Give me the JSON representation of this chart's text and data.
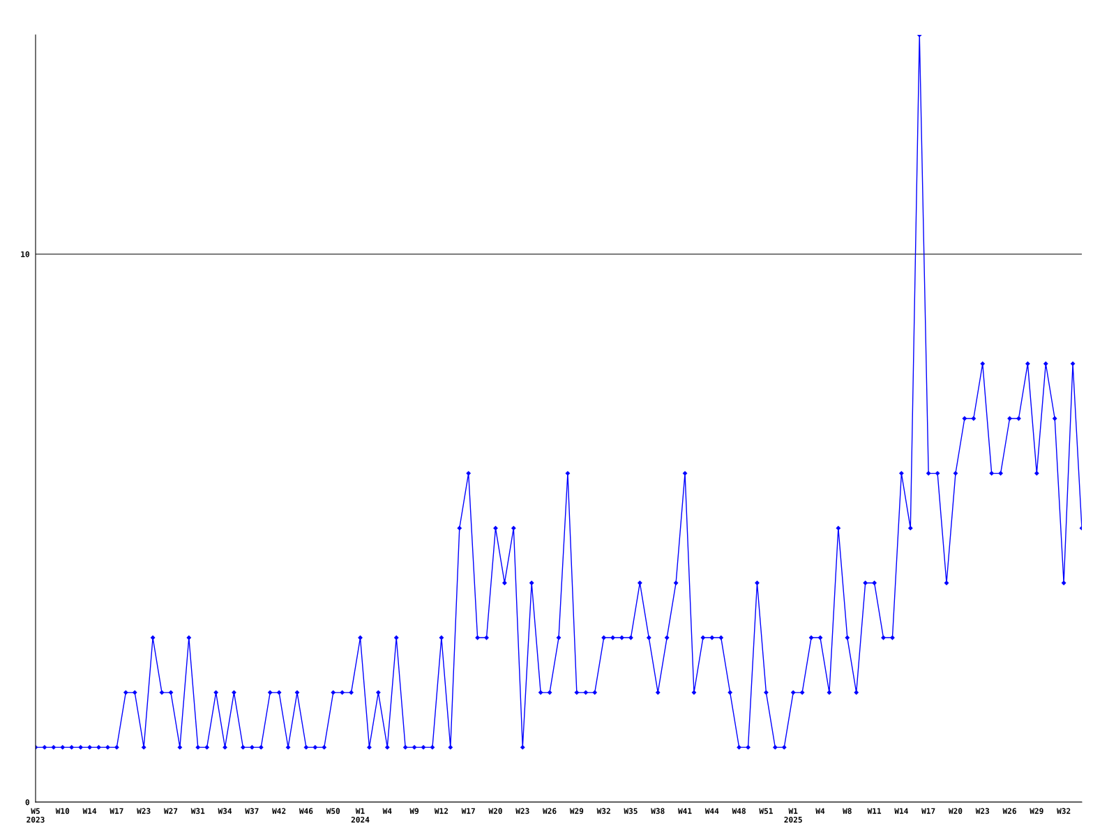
{
  "chart_data": {
    "type": "line",
    "categories": [
      "W5\n2023",
      null,
      null,
      "W10",
      null,
      null,
      "W14",
      null,
      null,
      "W17",
      null,
      null,
      "W23",
      null,
      null,
      "W27",
      null,
      null,
      "W31",
      null,
      null,
      "W34",
      null,
      null,
      "W37",
      null,
      null,
      "W42",
      null,
      null,
      "W46",
      null,
      null,
      "W50",
      null,
      null,
      "W1\n2024",
      null,
      null,
      "W4",
      null,
      null,
      "W9",
      null,
      null,
      "W12",
      null,
      null,
      "W17",
      null,
      null,
      "W20",
      null,
      null,
      "W23",
      null,
      null,
      "W26",
      null,
      null,
      "W29",
      null,
      null,
      "W32",
      null,
      null,
      "W35",
      null,
      null,
      "W38",
      null,
      null,
      "W41",
      null,
      null,
      "W44",
      null,
      null,
      "W48",
      null,
      null,
      "W51",
      null,
      null,
      "W1\n2025",
      null,
      null,
      "W4",
      null,
      null,
      "W8",
      null,
      null,
      "W11",
      null,
      null,
      "W14",
      null,
      null,
      "W17",
      null,
      null,
      "W20",
      null,
      null,
      "W23",
      null,
      null,
      "W26",
      null,
      null,
      "W29",
      null,
      null,
      "W32",
      null,
      null
    ],
    "series": [
      {
        "color": "#0000ff",
        "values": [
          1,
          1,
          1,
          1,
          1,
          1,
          1,
          1,
          1,
          1,
          2,
          2,
          1,
          3,
          2,
          2,
          1,
          3,
          1,
          1,
          2,
          1,
          2,
          1,
          1,
          1,
          2,
          2,
          1,
          2,
          1,
          1,
          1,
          2,
          2,
          2,
          3,
          1,
          2,
          1,
          3,
          1,
          1,
          1,
          1,
          3,
          1,
          5,
          6,
          3,
          3,
          5,
          4,
          5,
          1,
          4,
          2,
          2,
          3,
          6,
          2,
          2,
          2,
          3,
          3,
          3,
          3,
          4,
          3,
          2,
          3,
          4,
          6,
          2,
          3,
          3,
          3,
          2,
          1,
          1,
          4,
          2,
          1,
          1,
          2,
          2,
          3,
          3,
          2,
          5,
          3,
          2,
          4,
          4,
          3,
          3,
          6,
          5,
          14,
          6,
          6,
          4,
          6,
          7,
          7,
          8,
          6,
          6,
          7,
          7,
          8,
          6,
          8,
          7,
          4,
          8,
          5
        ]
      }
    ],
    "ylim": [
      0,
      14
    ],
    "yticks": [
      0,
      10
    ],
    "grid": "y",
    "marker": "diamond",
    "line_style": "solid",
    "legend": false
  }
}
